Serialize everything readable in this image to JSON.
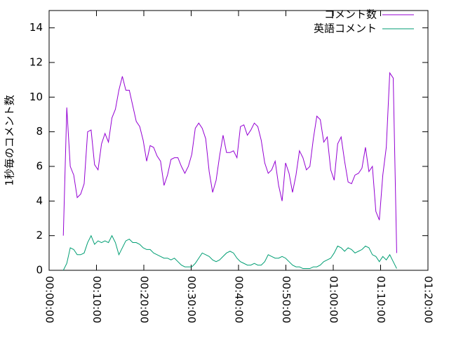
{
  "chart_data": {
    "type": "line",
    "ylabel": "1秒毎のコメント数",
    "x": [
      180,
      224,
      268,
      312,
      356,
      400,
      444,
      488,
      532,
      576,
      620,
      664,
      708,
      752,
      796,
      840,
      884,
      928,
      972,
      1016,
      1060,
      1104,
      1148,
      1192,
      1236,
      1280,
      1324,
      1368,
      1412,
      1456,
      1500,
      1544,
      1588,
      1632,
      1676,
      1720,
      1764,
      1808,
      1852,
      1896,
      1940,
      1984,
      2028,
      2072,
      2116,
      2160,
      2204,
      2248,
      2292,
      2336,
      2380,
      2424,
      2468,
      2512,
      2556,
      2600,
      2644,
      2688,
      2732,
      2776,
      2820,
      2864,
      2908,
      2952,
      2996,
      3040,
      3084,
      3128,
      3172,
      3216,
      3260,
      3304,
      3348,
      3392,
      3436,
      3480,
      3524,
      3568,
      3612,
      3656,
      3700,
      3744,
      3788,
      3832,
      3876,
      3920,
      3964,
      4008,
      4052,
      4096,
      4140,
      4184,
      4228,
      4272,
      4316,
      4360,
      4404
    ],
    "series": [
      {
        "name": "コメント数",
        "color": "#9400d3",
        "values": [
          2.0,
          9.4,
          6.0,
          5.5,
          4.2,
          4.4,
          5.0,
          8.0,
          8.1,
          6.1,
          5.8,
          7.3,
          7.9,
          7.4,
          8.8,
          9.3,
          10.4,
          11.2,
          10.4,
          10.4,
          9.5,
          8.6,
          8.3,
          7.5,
          6.3,
          7.2,
          7.1,
          6.6,
          6.3,
          4.9,
          5.5,
          6.4,
          6.5,
          6.5,
          6.0,
          5.6,
          6.0,
          6.7,
          8.2,
          8.5,
          8.2,
          7.6,
          5.7,
          4.5,
          5.2,
          6.6,
          7.8,
          6.8,
          6.8,
          6.9,
          6.5,
          8.3,
          8.4,
          7.8,
          8.1,
          8.5,
          8.3,
          7.5,
          6.2,
          5.6,
          5.8,
          6.3,
          4.9,
          4.0,
          6.2,
          5.6,
          4.5,
          5.5,
          6.9,
          6.5,
          5.8,
          6.0,
          7.6,
          8.9,
          8.7,
          7.4,
          7.7,
          5.8,
          5.2,
          7.3,
          7.7,
          6.3,
          5.1,
          5.0,
          5.5,
          5.6,
          5.9,
          7.1,
          5.7,
          6.0,
          3.4,
          2.9,
          5.5,
          7.1,
          11.4,
          11.1,
          1.0
        ]
      },
      {
        "name": "英語コメント",
        "color": "#009e73",
        "values": [
          0,
          0.4,
          1.3,
          1.2,
          0.9,
          0.9,
          1.0,
          1.6,
          2.0,
          1.5,
          1.7,
          1.6,
          1.7,
          1.6,
          2.0,
          1.6,
          0.9,
          1.3,
          1.7,
          1.8,
          1.6,
          1.6,
          1.5,
          1.3,
          1.2,
          1.2,
          1.0,
          0.9,
          0.8,
          0.7,
          0.7,
          0.6,
          0.7,
          0.5,
          0.3,
          0.2,
          0.2,
          0.2,
          0.4,
          0.7,
          1.0,
          0.9,
          0.8,
          0.6,
          0.5,
          0.6,
          0.8,
          1.0,
          1.1,
          1.0,
          0.7,
          0.5,
          0.4,
          0.3,
          0.3,
          0.4,
          0.3,
          0.3,
          0.5,
          0.9,
          0.8,
          0.7,
          0.7,
          0.8,
          0.7,
          0.5,
          0.3,
          0.2,
          0.2,
          0.1,
          0.1,
          0.1,
          0.2,
          0.2,
          0.3,
          0.5,
          0.6,
          0.7,
          1.0,
          1.4,
          1.3,
          1.1,
          1.3,
          1.2,
          1.0,
          1.1,
          1.2,
          1.4,
          1.3,
          0.9,
          0.8,
          0.5,
          0.8,
          0.6,
          0.9,
          0.5,
          0.1
        ]
      }
    ],
    "xlim": [
      0,
      4800
    ],
    "xticks": [
      {
        "value": 0,
        "label": "00:00:00"
      },
      {
        "value": 600,
        "label": "00:10:00"
      },
      {
        "value": 1200,
        "label": "00:20:00"
      },
      {
        "value": 1800,
        "label": "00:30:00"
      },
      {
        "value": 2400,
        "label": "00:40:00"
      },
      {
        "value": 3000,
        "label": "00:50:00"
      },
      {
        "value": 3600,
        "label": "01:00:00"
      },
      {
        "value": 4200,
        "label": "01:10:00"
      },
      {
        "value": 4800,
        "label": "01:20:00"
      }
    ],
    "ylim": [
      0,
      15
    ],
    "yticks": [
      0,
      2,
      4,
      6,
      8,
      10,
      12,
      14
    ],
    "legend": "top-right"
  }
}
